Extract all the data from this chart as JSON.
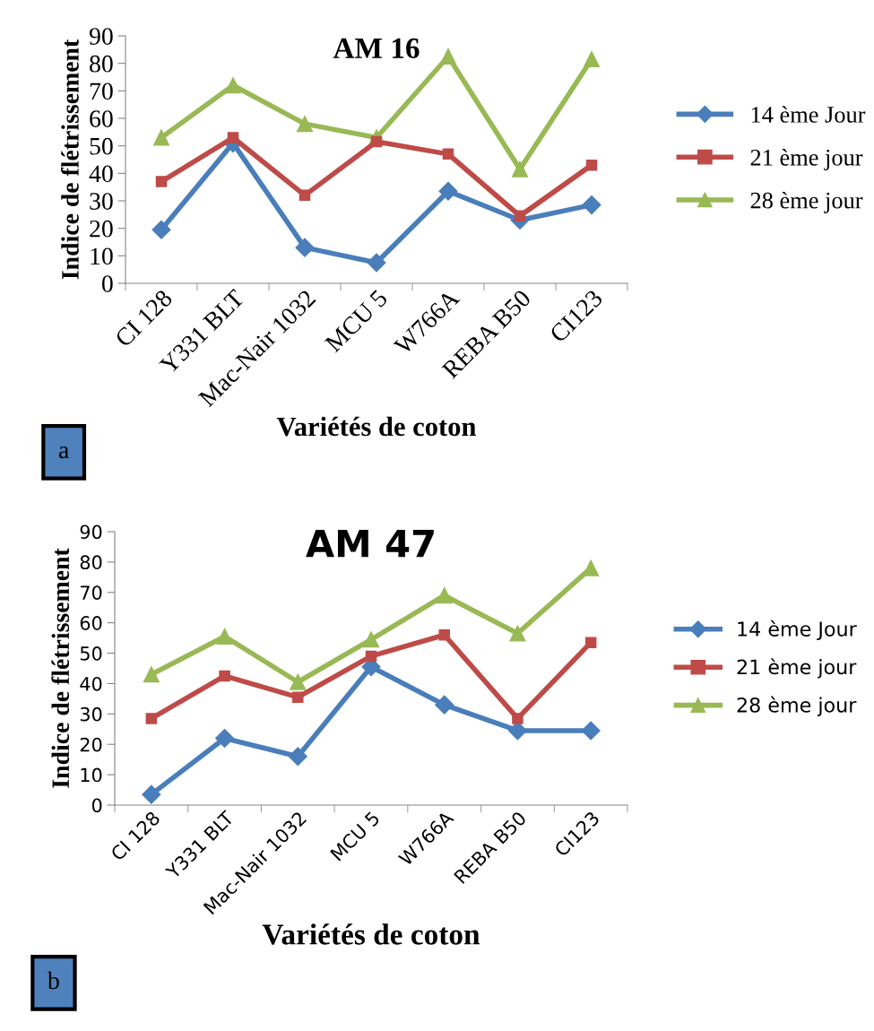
{
  "chart_data": [
    {
      "type": "line",
      "title": "AM 16",
      "xlabel": "Variétés de coton",
      "ylabel": "Indice de flétrissement",
      "categories": [
        "CI 128",
        "Y331 BLT",
        "Mac-Nair 1032",
        "MCU 5",
        "W766A",
        "REBA B50",
        "CI123"
      ],
      "ylim": [
        0,
        90
      ],
      "yticks": [
        0,
        10,
        20,
        30,
        40,
        50,
        60,
        70,
        80,
        90
      ],
      "grid": false,
      "legend": "right",
      "annotations": [
        "a"
      ],
      "series": [
        {
          "name": "14 ème Jour",
          "color": "#4a7ebb",
          "marker": "diamond",
          "values": [
            19.5,
            51,
            13,
            7.5,
            33.5,
            23,
            28.5
          ]
        },
        {
          "name": "21 ème jour",
          "color": "#be4b48",
          "marker": "square",
          "values": [
            37,
            53,
            32,
            51.5,
            47,
            24.5,
            43
          ]
        },
        {
          "name": "28 ème jour",
          "color": "#98b954",
          "marker": "triangle",
          "values": [
            53,
            72,
            58,
            53,
            82.5,
            41.5,
            81.5
          ]
        }
      ]
    },
    {
      "type": "line",
      "title": "AM 47",
      "xlabel": "Variétés de coton",
      "ylabel": "Indice de flétrissement",
      "categories": [
        "CI 128",
        "Y331 BLT",
        "Mac-Nair 1032",
        "MCU 5",
        "W766A",
        "REBA B50",
        "CI123"
      ],
      "ylim": [
        0,
        90
      ],
      "yticks": [
        0,
        10,
        20,
        30,
        40,
        50,
        60,
        70,
        80,
        90
      ],
      "grid": false,
      "legend": "right",
      "annotations": [
        "b"
      ],
      "series": [
        {
          "name": "14 ème Jour",
          "color": "#4a7ebb",
          "marker": "diamond",
          "values": [
            3.5,
            22,
            16,
            45.5,
            33,
            24.5,
            24.5
          ]
        },
        {
          "name": "21 ème jour",
          "color": "#be4b48",
          "marker": "square",
          "values": [
            28.5,
            42.5,
            35.5,
            49,
            56,
            28.5,
            53.5
          ]
        },
        {
          "name": "28 ème jour",
          "color": "#98b954",
          "marker": "triangle",
          "values": [
            43,
            55.5,
            40.5,
            54.5,
            69,
            56.5,
            78
          ]
        }
      ]
    }
  ]
}
